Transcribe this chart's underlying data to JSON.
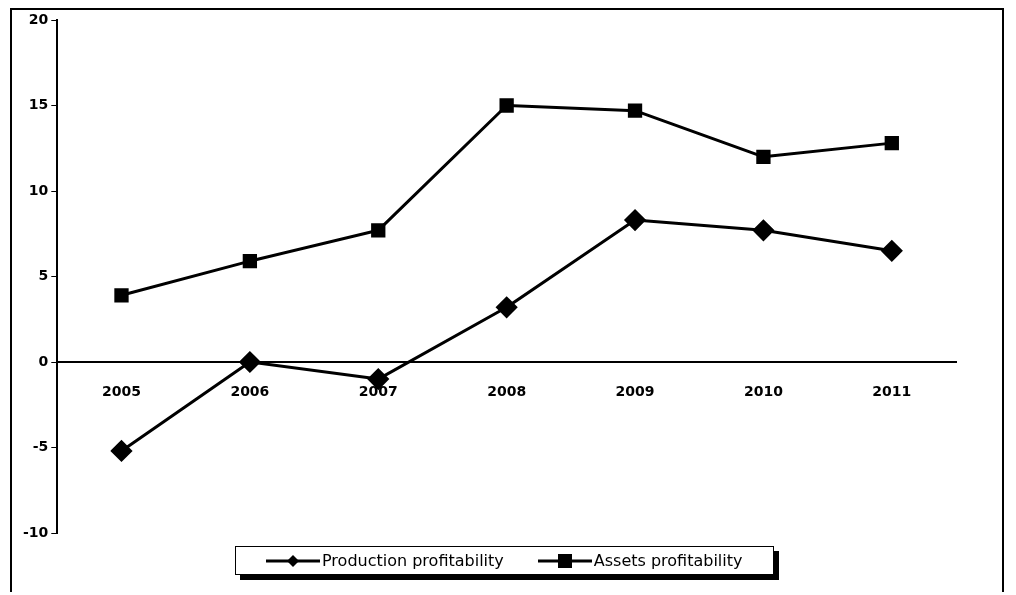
{
  "chart_data": {
    "type": "line",
    "categories": [
      "2005",
      "2006",
      "2007",
      "2008",
      "2009",
      "2010",
      "2011"
    ],
    "series": [
      {
        "name": "Production profitability",
        "color": "#000000",
        "marker": "diamond",
        "values": [
          -5.2,
          0,
          -1.0,
          3.2,
          8.3,
          7.7,
          6.5
        ]
      },
      {
        "name": "Assets profitability",
        "color": "#000000",
        "marker": "square",
        "values": [
          3.9,
          5.9,
          7.7,
          15.0,
          14.7,
          12.0,
          12.8
        ]
      }
    ],
    "ylim": [
      -10,
      20
    ],
    "yticks": [
      -10,
      -5,
      0,
      5,
      10,
      15,
      20
    ],
    "grid": false,
    "legend": "bottom",
    "line_style": "solid"
  }
}
